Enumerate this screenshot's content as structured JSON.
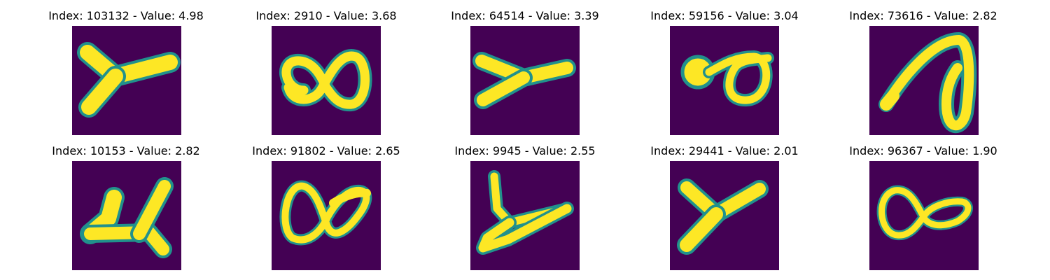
{
  "panels": [
    {
      "title": "Index: 103132 - Value: 4.98",
      "icon": "handwritten-y-glyph"
    },
    {
      "title": "Index: 2910 - Value: 3.68",
      "icon": "handwritten-infinity-glyph"
    },
    {
      "title": "Index: 64514 - Value: 3.39",
      "icon": "handwritten-y-glyph"
    },
    {
      "title": "Index: 59156 - Value: 3.04",
      "icon": "handwritten-infinity-glyph"
    },
    {
      "title": "Index: 73616 - Value: 2.82",
      "icon": "handwritten-loop-glyph"
    },
    {
      "title": "Index: 10153 - Value: 2.82",
      "icon": "handwritten-y-glyph"
    },
    {
      "title": "Index: 91802 - Value: 2.65",
      "icon": "handwritten-infinity-glyph"
    },
    {
      "title": "Index: 9945 - Value: 2.55",
      "icon": "handwritten-y-glyph"
    },
    {
      "title": "Index: 29441 - Value: 2.01",
      "icon": "handwritten-y-glyph"
    },
    {
      "title": "Index: 96367 - Value: 1.90",
      "icon": "handwritten-infinity-glyph"
    }
  ],
  "colors": {
    "background": "#440154",
    "stroke_core": "#fde725",
    "stroke_edge": "#21918c"
  }
}
